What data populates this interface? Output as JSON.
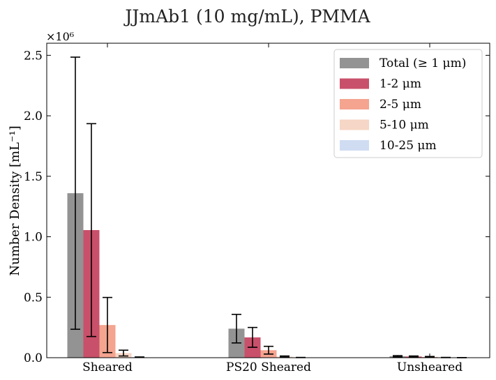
{
  "chart_data": {
    "type": "bar",
    "title": "JJmAb1 (10 mg/mL), PMMA",
    "ylabel": "Number Density [mL⁻¹]",
    "xlabel": "",
    "y_multiplier_label": "×10⁶",
    "categories": [
      "Sheared",
      "PS20 Sheared",
      "Unsheared"
    ],
    "ylim": [
      0,
      2600000
    ],
    "yticks": [
      0,
      500000,
      1000000,
      1500000,
      2000000,
      2500000
    ],
    "ytick_labels": [
      "0.0",
      "0.5",
      "1.0",
      "1.5",
      "2.0",
      "2.5"
    ],
    "legend_position": "top-right",
    "grid": false,
    "series": [
      {
        "name": "Total (≥ 1 μm)",
        "color": "#939393",
        "values": [
          1360000,
          240000,
          12000
        ],
        "errors": [
          1125000,
          118000,
          5000
        ]
      },
      {
        "name": "1-2 μm",
        "color": "#c9506a",
        "values": [
          1055000,
          168000,
          10000
        ],
        "errors": [
          880000,
          82000,
          4000
        ]
      },
      {
        "name": "2-5 μm",
        "color": "#f4a48f",
        "values": [
          270000,
          62000,
          6000
        ],
        "errors": [
          228000,
          32000,
          4000
        ]
      },
      {
        "name": "5-10 μm",
        "color": "#f6d6c6",
        "values": [
          38000,
          9000,
          1500
        ],
        "errors": [
          24000,
          5000,
          1000
        ]
      },
      {
        "name": "10-25 μm",
        "color": "#d0dcf2",
        "values": [
          4000,
          1500,
          500
        ],
        "errors": [
          2000,
          800,
          300
        ]
      }
    ]
  }
}
